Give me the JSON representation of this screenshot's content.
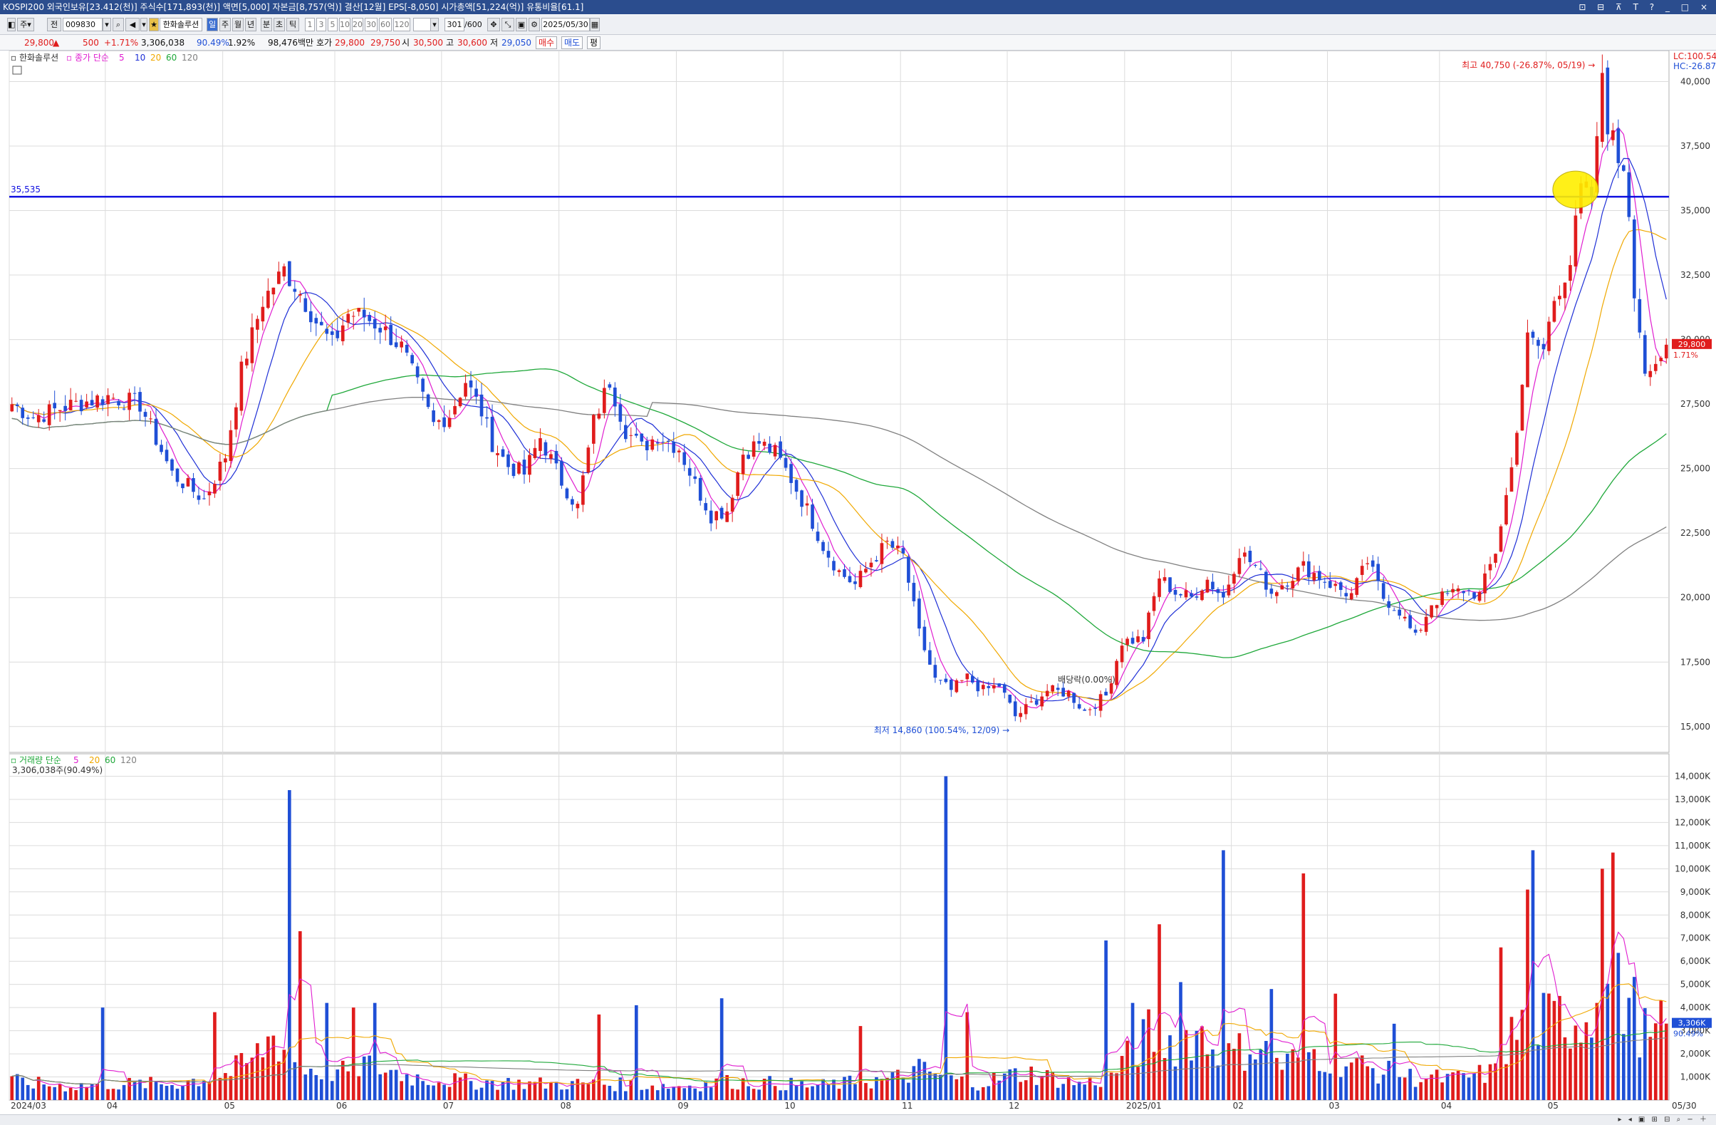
{
  "title_bar": {
    "text": "KOSPI200 외국인보유[23.412(천)] 주식수[171,893(천)] 액면[5,000] 자본금[8,757(억)] 결산[12월] EPS[-8,050] 시가총액[51,224(억)] 유통비율[61.1]",
    "win_buttons": "⊡ ⊟ ⊼ T ? _ □ ×"
  },
  "toolbar": {
    "btn_ju": "주",
    "btn_jeon": "전",
    "code": "009830",
    "stock_name": "한화솔루션",
    "btn_il": "일",
    "btn_ju2": "주",
    "btn_wol": "월",
    "btn_nyeon": "년",
    "btn_bun": "분",
    "btn_cho": "초",
    "btn_tik": "틱",
    "periods": [
      "1",
      "3",
      "5",
      "10",
      "20",
      "30",
      "60",
      "120"
    ],
    "count": "301",
    "count_max": "/600",
    "date": "2025/05/30"
  },
  "quote": {
    "price": "29,800",
    "arrow": "▲",
    "change": "500",
    "change_pct": "+1.71%",
    "volume": "3,306,038",
    "vol_ratio": "90.49%",
    "turnover": "1.92%",
    "amount": "98,476백만",
    "hoga_label": "호가",
    "ask": "29,800",
    "bid": "29,750",
    "open_label": "시",
    "open": "30,500",
    "high_label": "고",
    "high": "30,600",
    "low_label": "저",
    "low": "29,050",
    "buy_btn": "매수",
    "sell_btn": "매도",
    "eval_btn": "평"
  },
  "colors": {
    "up": "#e01c1c",
    "down": "#1f4fd6",
    "ma5": "#e01ed0",
    "ma10": "#1e2fd6",
    "ma20": "#f0a800",
    "ma60": "#1fa83a",
    "ma120": "#808080",
    "hline": "#1010e0",
    "grid": "#dcdcdc"
  },
  "chart_data": [
    {
      "type": "candlestick",
      "name": "한화솔루션",
      "legend_label": "종가 단순",
      "ma_periods": [
        5,
        10,
        20,
        60,
        120
      ],
      "ylim": [
        14000,
        41200
      ],
      "y_ticks": [
        "15,000",
        "17,500",
        "20,000",
        "22,500",
        "25,000",
        "27,500",
        "30,000",
        "32,500",
        "35,000",
        "37,500",
        "40,000"
      ],
      "x_ticks": [
        "2024/03",
        "04",
        "05",
        "06",
        "07",
        "08",
        "09",
        "10",
        "11",
        "12",
        "2025/01",
        "02",
        "03",
        "04",
        "05"
      ],
      "x_tick_index": [
        0,
        18,
        40,
        61,
        81,
        103,
        125,
        145,
        167,
        187,
        209,
        229,
        247,
        268,
        288
      ],
      "x_end_label": "05/30",
      "hline": {
        "value": 35535,
        "label": "35,535"
      },
      "annotations": {
        "high": "최고 40,750 (-26.87%, 05/19)",
        "low": "최저 14,860 (100.54%, 12/09)",
        "dividend": "배당락(0.00%)"
      },
      "corner": {
        "lc": "LC:100.54",
        "hc": "HC:-26.87"
      },
      "last": {
        "price": "29,800",
        "pct": "1.71%"
      },
      "anchors": [
        [
          0,
          27500
        ],
        [
          4,
          27000
        ],
        [
          10,
          27400
        ],
        [
          18,
          27800
        ],
        [
          24,
          27500
        ],
        [
          30,
          24800
        ],
        [
          36,
          23800
        ],
        [
          40,
          25500
        ],
        [
          43,
          28800
        ],
        [
          47,
          31500
        ],
        [
          51,
          32700
        ],
        [
          54,
          31800
        ],
        [
          57,
          30700
        ],
        [
          60,
          29800
        ],
        [
          63,
          31000
        ],
        [
          66,
          30900
        ],
        [
          69,
          30500
        ],
        [
          73,
          29700
        ],
        [
          76,
          28200
        ],
        [
          79,
          26700
        ],
        [
          82,
          27100
        ],
        [
          85,
          28400
        ],
        [
          88,
          27200
        ],
        [
          90,
          26000
        ],
        [
          93,
          25100
        ],
        [
          96,
          24800
        ],
        [
          99,
          26200
        ],
        [
          103,
          24500
        ],
        [
          106,
          23500
        ],
        [
          109,
          26800
        ],
        [
          112,
          28400
        ],
        [
          115,
          26500
        ],
        [
          118,
          25800
        ],
        [
          121,
          26300
        ],
        [
          125,
          25800
        ],
        [
          128,
          24400
        ],
        [
          131,
          23200
        ],
        [
          134,
          23400
        ],
        [
          137,
          25600
        ],
        [
          140,
          26000
        ],
        [
          143,
          25600
        ],
        [
          146,
          24600
        ],
        [
          149,
          23400
        ],
        [
          152,
          22000
        ],
        [
          155,
          21000
        ],
        [
          158,
          20500
        ],
        [
          161,
          21400
        ],
        [
          164,
          22100
        ],
        [
          167,
          21600
        ],
        [
          170,
          18600
        ],
        [
          173,
          16800
        ],
        [
          176,
          16400
        ],
        [
          179,
          16900
        ],
        [
          182,
          16400
        ],
        [
          185,
          16600
        ],
        [
          188,
          15400
        ],
        [
          190,
          15700
        ],
        [
          194,
          16400
        ],
        [
          198,
          16300
        ],
        [
          201,
          15600
        ],
        [
          205,
          16200
        ],
        [
          208,
          18300
        ],
        [
          212,
          18400
        ],
        [
          215,
          20800
        ],
        [
          218,
          20200
        ],
        [
          221,
          20000
        ],
        [
          224,
          20700
        ],
        [
          227,
          20000
        ],
        [
          230,
          21800
        ],
        [
          233,
          21200
        ],
        [
          236,
          20200
        ],
        [
          239,
          20700
        ],
        [
          242,
          21200
        ],
        [
          245,
          20800
        ],
        [
          248,
          20400
        ],
        [
          251,
          20100
        ],
        [
          254,
          21400
        ],
        [
          257,
          20000
        ],
        [
          260,
          19500
        ],
        [
          263,
          18400
        ],
        [
          266,
          19800
        ],
        [
          269,
          20100
        ],
        [
          272,
          20300
        ],
        [
          275,
          20100
        ],
        [
          278,
          21800
        ],
        [
          281,
          25000
        ],
        [
          284,
          30000
        ],
        [
          287,
          29600
        ],
        [
          289,
          31600
        ],
        [
          292,
          33000
        ],
        [
          294,
          35800
        ],
        [
          296,
          35600
        ],
        [
          297,
          37500
        ],
        [
          298,
          40400
        ],
        [
          299,
          38400
        ],
        [
          301,
          37000
        ],
        [
          302,
          36800
        ],
        [
          303,
          35000
        ],
        [
          304,
          32000
        ],
        [
          306,
          28800
        ],
        [
          307,
          28400
        ],
        [
          309,
          29200
        ],
        [
          310,
          29800
        ]
      ],
      "vol_anchors": [
        [
          0,
          800
        ],
        [
          10,
          600
        ],
        [
          18,
          700
        ],
        [
          30,
          700
        ],
        [
          40,
          1100
        ],
        [
          45,
          1700
        ],
        [
          49,
          2800
        ],
        [
          51,
          2300
        ],
        [
          55,
          1400
        ],
        [
          62,
          1200
        ],
        [
          66,
          1600
        ],
        [
          75,
          1000
        ],
        [
          85,
          800
        ],
        [
          100,
          700
        ],
        [
          110,
          700
        ],
        [
          125,
          600
        ],
        [
          135,
          800
        ],
        [
          145,
          700
        ],
        [
          150,
          600
        ],
        [
          165,
          900
        ],
        [
          170,
          1300
        ],
        [
          180,
          700
        ],
        [
          190,
          1200
        ],
        [
          200,
          700
        ],
        [
          205,
          900
        ],
        [
          209,
          1800
        ],
        [
          213,
          2800
        ],
        [
          218,
          2500
        ],
        [
          222,
          3000
        ],
        [
          227,
          1800
        ],
        [
          233,
          2400
        ],
        [
          238,
          1500
        ],
        [
          243,
          2100
        ],
        [
          248,
          1800
        ],
        [
          255,
          1300
        ],
        [
          262,
          1000
        ],
        [
          270,
          900
        ],
        [
          278,
          1200
        ],
        [
          280,
          2400
        ],
        [
          284,
          3500
        ],
        [
          288,
          3300
        ],
        [
          292,
          3500
        ],
        [
          296,
          3600
        ],
        [
          300,
          4700
        ],
        [
          303,
          4300
        ],
        [
          307,
          2400
        ],
        [
          310,
          3300
        ]
      ],
      "vol_spikes": [
        [
          17,
          4000
        ],
        [
          38,
          3800
        ],
        [
          52,
          13400
        ],
        [
          54,
          7300
        ],
        [
          59,
          4200
        ],
        [
          64,
          4000
        ],
        [
          68,
          4200
        ],
        [
          110,
          3700
        ],
        [
          117,
          4100
        ],
        [
          133,
          4400
        ],
        [
          159,
          3200
        ],
        [
          175,
          14000
        ],
        [
          179,
          3800
        ],
        [
          205,
          6900
        ],
        [
          210,
          4200
        ],
        [
          215,
          7600
        ],
        [
          219,
          5100
        ],
        [
          227,
          10800
        ],
        [
          236,
          4800
        ],
        [
          242,
          9800
        ],
        [
          248,
          4600
        ],
        [
          259,
          3300
        ],
        [
          279,
          6600
        ],
        [
          284,
          9100
        ],
        [
          285,
          10800
        ],
        [
          290,
          4500
        ],
        [
          297,
          4200
        ],
        [
          298,
          10000
        ],
        [
          300,
          10700
        ]
      ]
    },
    {
      "type": "bar",
      "name": "거래량",
      "legend_label": "거래량 단순",
      "ma_periods": [
        5,
        20,
        60,
        120
      ],
      "ylim": [
        0,
        14600
      ],
      "y_ticks": [
        "1,000K",
        "2,000K",
        "3,000K",
        "4,000K",
        "5,000K",
        "6,000K",
        "7,000K",
        "8,000K",
        "9,000K",
        "10,000K",
        "11,000K",
        "12,000K",
        "13,000K",
        "14,000K"
      ],
      "last_volume_label": "3,306,038주(90.49%)",
      "last": {
        "volume": "3,306K",
        "pct": "90.49%"
      }
    }
  ]
}
